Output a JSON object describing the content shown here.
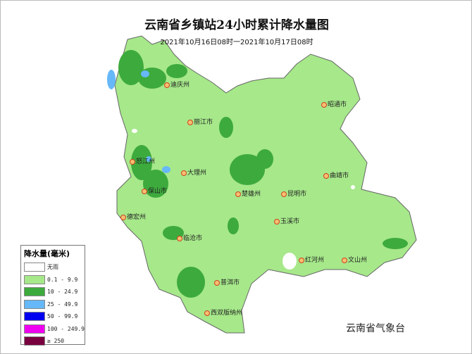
{
  "title": "云南省乡镇站24小时累计降水量图",
  "subtitle": "2021年10月16日08时一2021年10月17日08时",
  "agency": "云南省气象台",
  "legend": {
    "title": "降水量(毫米)",
    "items": [
      {
        "label": "无雨",
        "color": "#ffffff"
      },
      {
        "label": "0.1 - 9.9",
        "color": "#a6e88a"
      },
      {
        "label": "10 - 24.9",
        "color": "#3daa3d"
      },
      {
        "label": "25 - 49.9",
        "color": "#66b8f8"
      },
      {
        "label": "50 - 99.9",
        "color": "#0000f0"
      },
      {
        "label": "100 - 249.9",
        "color": "#f000f0"
      },
      {
        "label": "≥ 250",
        "color": "#780040"
      }
    ]
  },
  "cities": [
    {
      "name": "迪庆州"
    },
    {
      "name": "昭通市"
    },
    {
      "name": "丽江市"
    },
    {
      "name": "怒江州"
    },
    {
      "name": "大理州"
    },
    {
      "name": "曲靖市"
    },
    {
      "name": "保山市"
    },
    {
      "name": "楚雄州"
    },
    {
      "name": "昆明市"
    },
    {
      "name": "德宏州"
    },
    {
      "name": "玉溪市"
    },
    {
      "name": "临沧市"
    },
    {
      "name": "红河州"
    },
    {
      "name": "文山州"
    },
    {
      "name": "普洱市"
    },
    {
      "name": "西双版纳州"
    }
  ]
}
